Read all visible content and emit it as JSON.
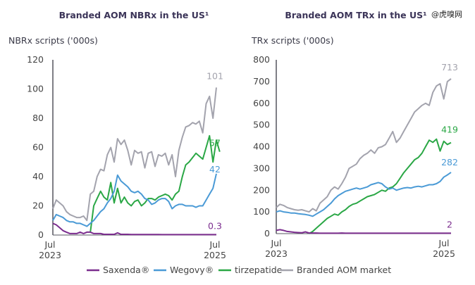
{
  "watermark": "@虎嗅网",
  "colors": {
    "Saxenda": "#7b2d8e",
    "Wegovy": "#4a9ad6",
    "tirzepatide": "#2aa745",
    "market": "#a3a3ad"
  },
  "legend": [
    "Saxenda®",
    "Wegovy®",
    "tirzepatide",
    "Branded AOM market"
  ],
  "chart_data": [
    {
      "type": "line",
      "title": "Branded AOM NBRx in the US¹",
      "ylabel": "NBRx scripts ('000s)",
      "xlabel": "",
      "ylim": [
        0,
        120
      ],
      "yticks": [
        "0",
        "20",
        "40",
        "60",
        "80",
        "100",
        "120"
      ],
      "xticks": [
        {
          "top": "Jul",
          "bottom": "2023"
        },
        {
          "top": "Jul",
          "bottom": "2025"
        }
      ],
      "x_unit": "half-months since Jul 2023",
      "series": [
        {
          "name": "Branded AOM market",
          "key": "market",
          "start": 0,
          "end_label": "101",
          "values": [
            18,
            24,
            22,
            20,
            16,
            14,
            13,
            12,
            12,
            13,
            10,
            28,
            30,
            40,
            45,
            44,
            55,
            60,
            50,
            66,
            62,
            65,
            58,
            48,
            58,
            56,
            57,
            46,
            56,
            57,
            47,
            55,
            54,
            56,
            48,
            55,
            40,
            58,
            67,
            74,
            75,
            77,
            76,
            78,
            70,
            90,
            95,
            80,
            101
          ]
        },
        {
          "name": "tirzepatide",
          "key": "tirzepatide",
          "start": 11,
          "end_label": "57",
          "values": [
            2,
            20,
            25,
            30,
            26,
            24,
            36,
            22,
            32,
            22,
            26,
            22,
            20,
            23,
            24,
            20,
            22,
            25,
            25,
            24,
            26,
            27,
            28,
            27,
            24,
            28,
            30,
            40,
            48,
            50,
            53,
            56,
            54,
            52,
            60,
            68,
            50,
            65,
            57
          ]
        },
        {
          "name": "Wegovy®",
          "key": "Wegovy",
          "start": 0,
          "end_label": "42",
          "values": [
            10,
            14,
            13,
            12,
            10,
            9,
            9,
            8,
            8,
            7,
            6,
            8,
            10,
            13,
            16,
            18,
            22,
            25,
            30,
            41,
            37,
            35,
            33,
            30,
            29,
            30,
            28,
            25,
            24,
            21,
            22,
            24,
            25,
            25,
            23,
            18,
            20,
            21,
            21,
            20,
            20,
            20,
            19,
            20,
            20,
            24,
            28,
            32,
            42
          ]
        },
        {
          "name": "Saxenda®",
          "key": "Saxenda",
          "start": 0,
          "end_label": "0.3",
          "values": [
            8,
            7,
            5,
            3,
            2,
            1,
            1,
            1,
            2,
            1,
            2,
            2,
            1,
            1,
            1,
            0.5,
            0.5,
            0.5,
            0.5,
            1.5,
            0.5,
            0.5,
            0.5,
            0.4,
            0.4,
            0.4,
            0.4,
            0.4,
            0.4,
            0.4,
            0.4,
            0.4,
            0.3,
            0.3,
            0.3,
            0.3,
            0.3,
            0.3,
            0.3,
            0.3,
            0.3,
            0.3,
            0.3,
            0.3,
            0.3,
            0.3,
            0.3,
            0.3,
            0.3
          ]
        }
      ]
    },
    {
      "type": "line",
      "title": "Branded AOM TRx in the US¹",
      "ylabel": "TRx scripts ('000s)",
      "xlabel": "",
      "ylim": [
        0,
        800
      ],
      "yticks": [
        "0",
        "100",
        "200",
        "300",
        "400",
        "500",
        "600",
        "700",
        "800"
      ],
      "xticks": [
        {
          "top": "Jul",
          "bottom": "2023"
        },
        {
          "top": "Jul",
          "bottom": "2025"
        }
      ],
      "x_unit": "half-months since Jul 2023",
      "series": [
        {
          "name": "Branded AOM market",
          "key": "market",
          "start": 0,
          "end_label": "713",
          "values": [
            120,
            135,
            130,
            120,
            115,
            110,
            108,
            110,
            105,
            100,
            115,
            105,
            140,
            155,
            170,
            200,
            215,
            205,
            230,
            260,
            300,
            310,
            320,
            345,
            360,
            370,
            385,
            370,
            395,
            400,
            410,
            440,
            470,
            420,
            440,
            470,
            500,
            530,
            560,
            575,
            590,
            600,
            590,
            650,
            680,
            690,
            620,
            700,
            713
          ]
        },
        {
          "name": "tirzepatide",
          "key": "tirzepatide",
          "start": 9,
          "end_label": "419",
          "values": [
            0,
            10,
            25,
            40,
            55,
            70,
            80,
            90,
            85,
            100,
            110,
            125,
            135,
            140,
            150,
            160,
            170,
            175,
            180,
            190,
            200,
            195,
            210,
            215,
            230,
            255,
            280,
            300,
            320,
            340,
            350,
            370,
            400,
            430,
            420,
            435,
            380,
            425,
            410,
            419
          ]
        },
        {
          "name": "Wegovy®",
          "key": "Wegovy",
          "start": 0,
          "end_label": "282",
          "values": [
            100,
            105,
            100,
            98,
            95,
            95,
            92,
            90,
            88,
            85,
            80,
            90,
            100,
            110,
            125,
            140,
            160,
            175,
            185,
            195,
            200,
            205,
            210,
            205,
            210,
            215,
            225,
            230,
            235,
            230,
            215,
            205,
            210,
            200,
            205,
            210,
            212,
            210,
            215,
            218,
            215,
            220,
            225,
            225,
            230,
            240,
            260,
            270,
            282
          ]
        },
        {
          "name": "Saxenda®",
          "key": "Saxenda",
          "start": 0,
          "end_label": "2",
          "values": [
            15,
            18,
            15,
            10,
            8,
            6,
            5,
            4,
            8,
            3,
            3,
            3,
            2,
            2,
            2,
            2,
            2,
            2,
            3,
            2,
            2,
            2,
            2,
            2,
            2,
            2,
            2,
            2,
            2,
            2,
            2,
            2,
            2,
            2,
            2,
            2,
            2,
            2,
            2,
            2,
            2,
            2,
            2,
            2,
            2,
            2,
            2,
            2,
            2
          ]
        }
      ]
    }
  ]
}
